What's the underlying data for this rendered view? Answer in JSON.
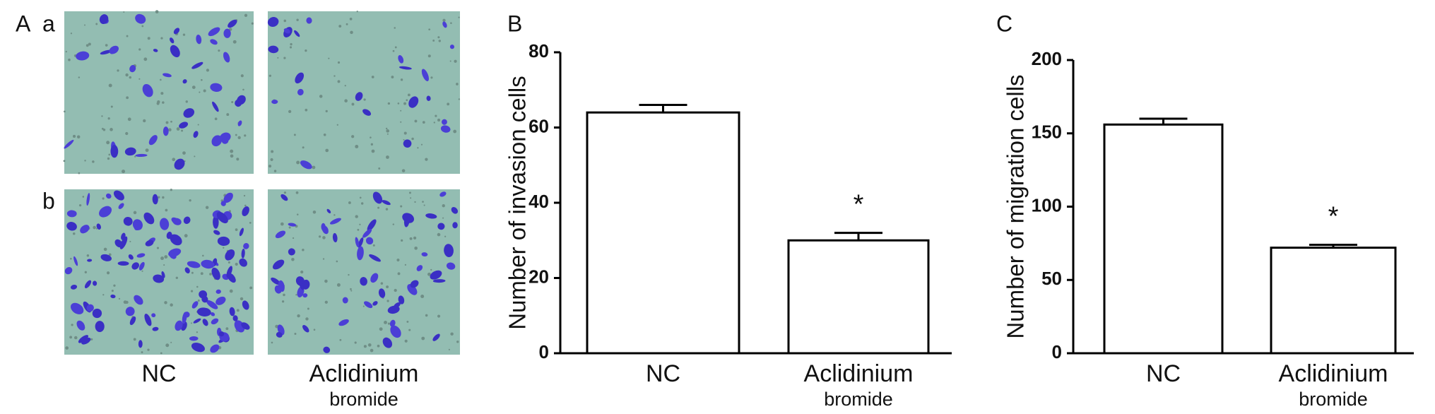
{
  "panel_a": {
    "label": "A",
    "rows": [
      "a",
      "b"
    ],
    "columns": [
      {
        "line1": "NC"
      },
      {
        "line1": "Aclidinium",
        "line2": "bromide"
      }
    ]
  },
  "chart_data": [
    {
      "type": "bar",
      "panel_label": "B",
      "y_label": "Number of invasion cells",
      "categories": [
        "NC",
        "Aclidinium bromide"
      ],
      "values": [
        64,
        30
      ],
      "errors": [
        2,
        2
      ],
      "annotations": [
        null,
        "*"
      ],
      "color": "#ffffff",
      "edgecolor": "#000000",
      "ylim": [
        0,
        80
      ],
      "yticks": [
        0,
        20,
        40,
        60,
        80
      ]
    },
    {
      "type": "bar",
      "panel_label": "C",
      "y_label": "Number of migration cells",
      "categories": [
        "NC",
        "Aclidinium bromide"
      ],
      "values": [
        156,
        72
      ],
      "errors": [
        4,
        2
      ],
      "annotations": [
        null,
        "*"
      ],
      "color": "#ffffff",
      "edgecolor": "#000000",
      "ylim": [
        0,
        200
      ],
      "yticks": [
        0,
        50,
        100,
        150,
        200
      ]
    }
  ]
}
